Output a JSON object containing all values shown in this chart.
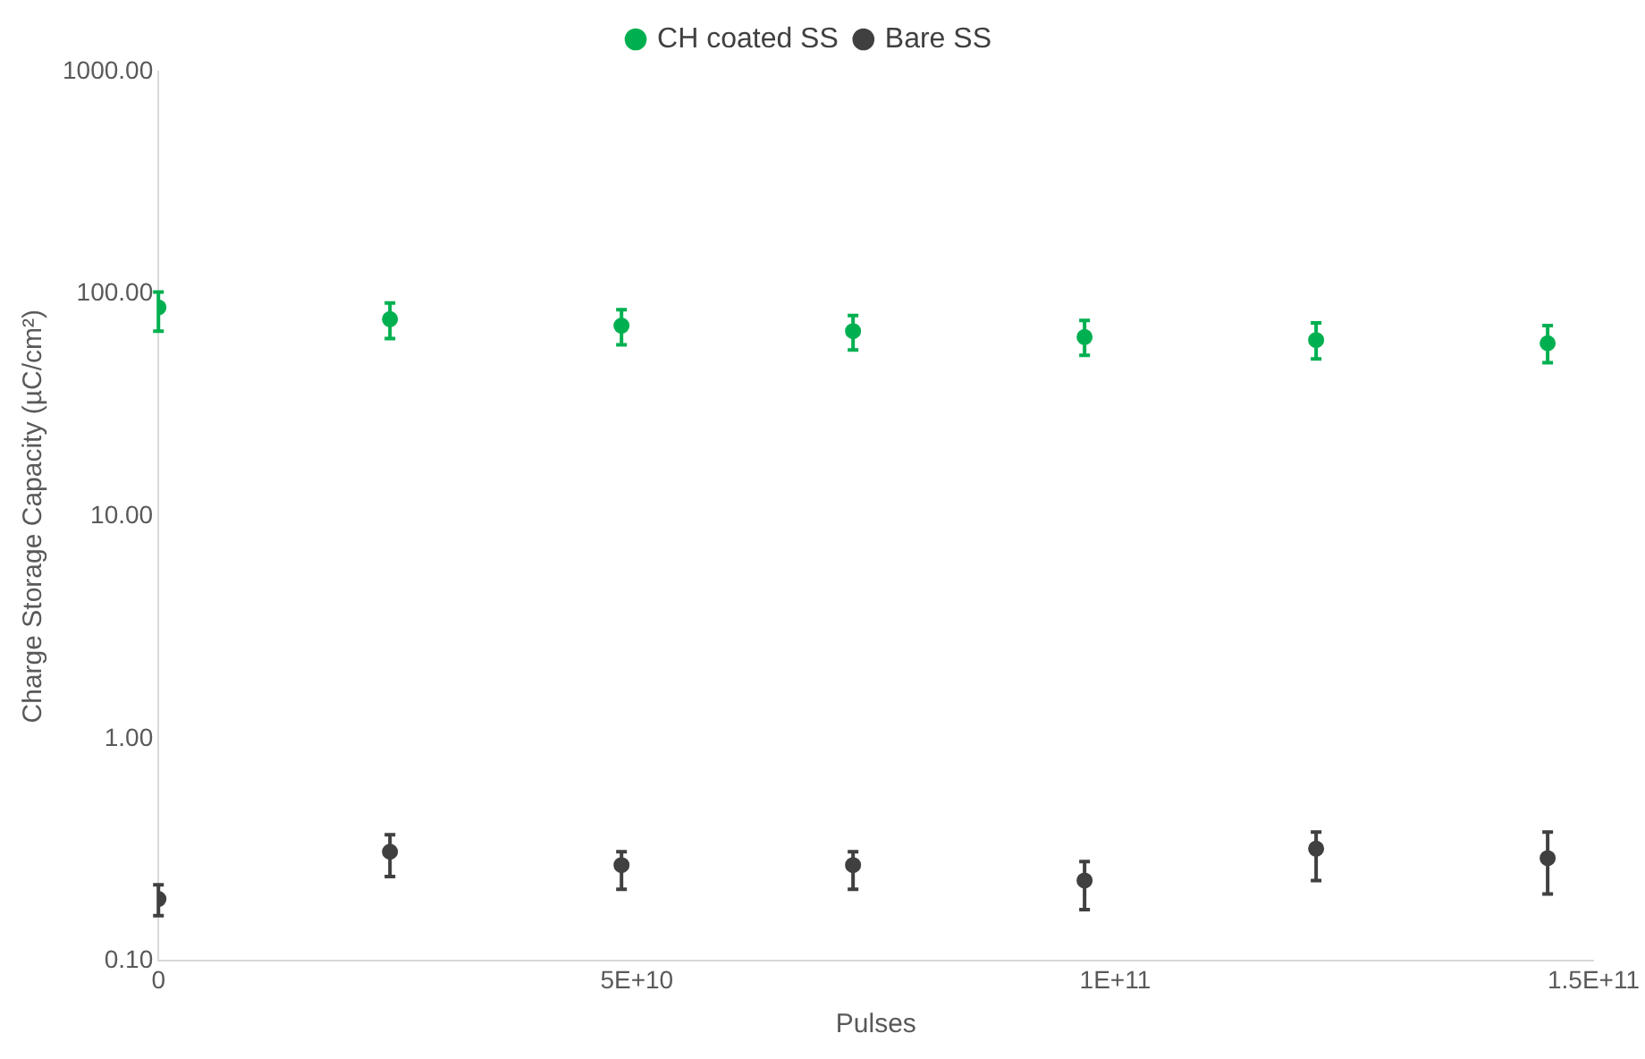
{
  "chart_data": {
    "type": "scatter",
    "xlabel": "Pulses",
    "ylabel": "Charge Storage Capacity (µC/cm²)",
    "x": [
      0,
      24200000000,
      48400000000,
      72600000000,
      96800000000,
      121000000000,
      145200000000
    ],
    "series": [
      {
        "name": "CH coated SS",
        "color": "#00b050",
        "values": [
          87,
          77,
          72,
          68,
          64,
          62,
          60
        ],
        "errors": [
          [
            68,
            102
          ],
          [
            63,
            91
          ],
          [
            59,
            85
          ],
          [
            56,
            80
          ],
          [
            53,
            76
          ],
          [
            51,
            74
          ],
          [
            49,
            72
          ]
        ]
      },
      {
        "name": "Bare SS",
        "color": "#404040",
        "values": [
          0.19,
          0.31,
          0.27,
          0.27,
          0.23,
          0.32,
          0.29
        ],
        "errors": [
          [
            0.16,
            0.22
          ],
          [
            0.24,
            0.37
          ],
          [
            0.21,
            0.31
          ],
          [
            0.21,
            0.31
          ],
          [
            0.17,
            0.28
          ],
          [
            0.23,
            0.38
          ],
          [
            0.2,
            0.38
          ]
        ]
      }
    ],
    "log": "y",
    "xlim": [
      0,
      150000000000
    ],
    "xticks": [
      0,
      {
        "value": 50000000000,
        "label": "5E+10"
      },
      {
        "value": 100000000000,
        "label": "1E+11"
      },
      {
        "value": 150000000000,
        "label": "1.5E+11"
      }
    ],
    "ylim": [
      0.1,
      1000
    ],
    "yticks": [
      {
        "value": 0.1,
        "label": "0.10"
      },
      {
        "value": 1,
        "label": "1.00"
      },
      {
        "value": 10,
        "label": "10.00"
      },
      {
        "value": 100,
        "label": "100.00"
      },
      {
        "value": 1000,
        "label": "1000.00"
      }
    ],
    "grid": false,
    "legend": "top",
    "marker": "circle"
  }
}
